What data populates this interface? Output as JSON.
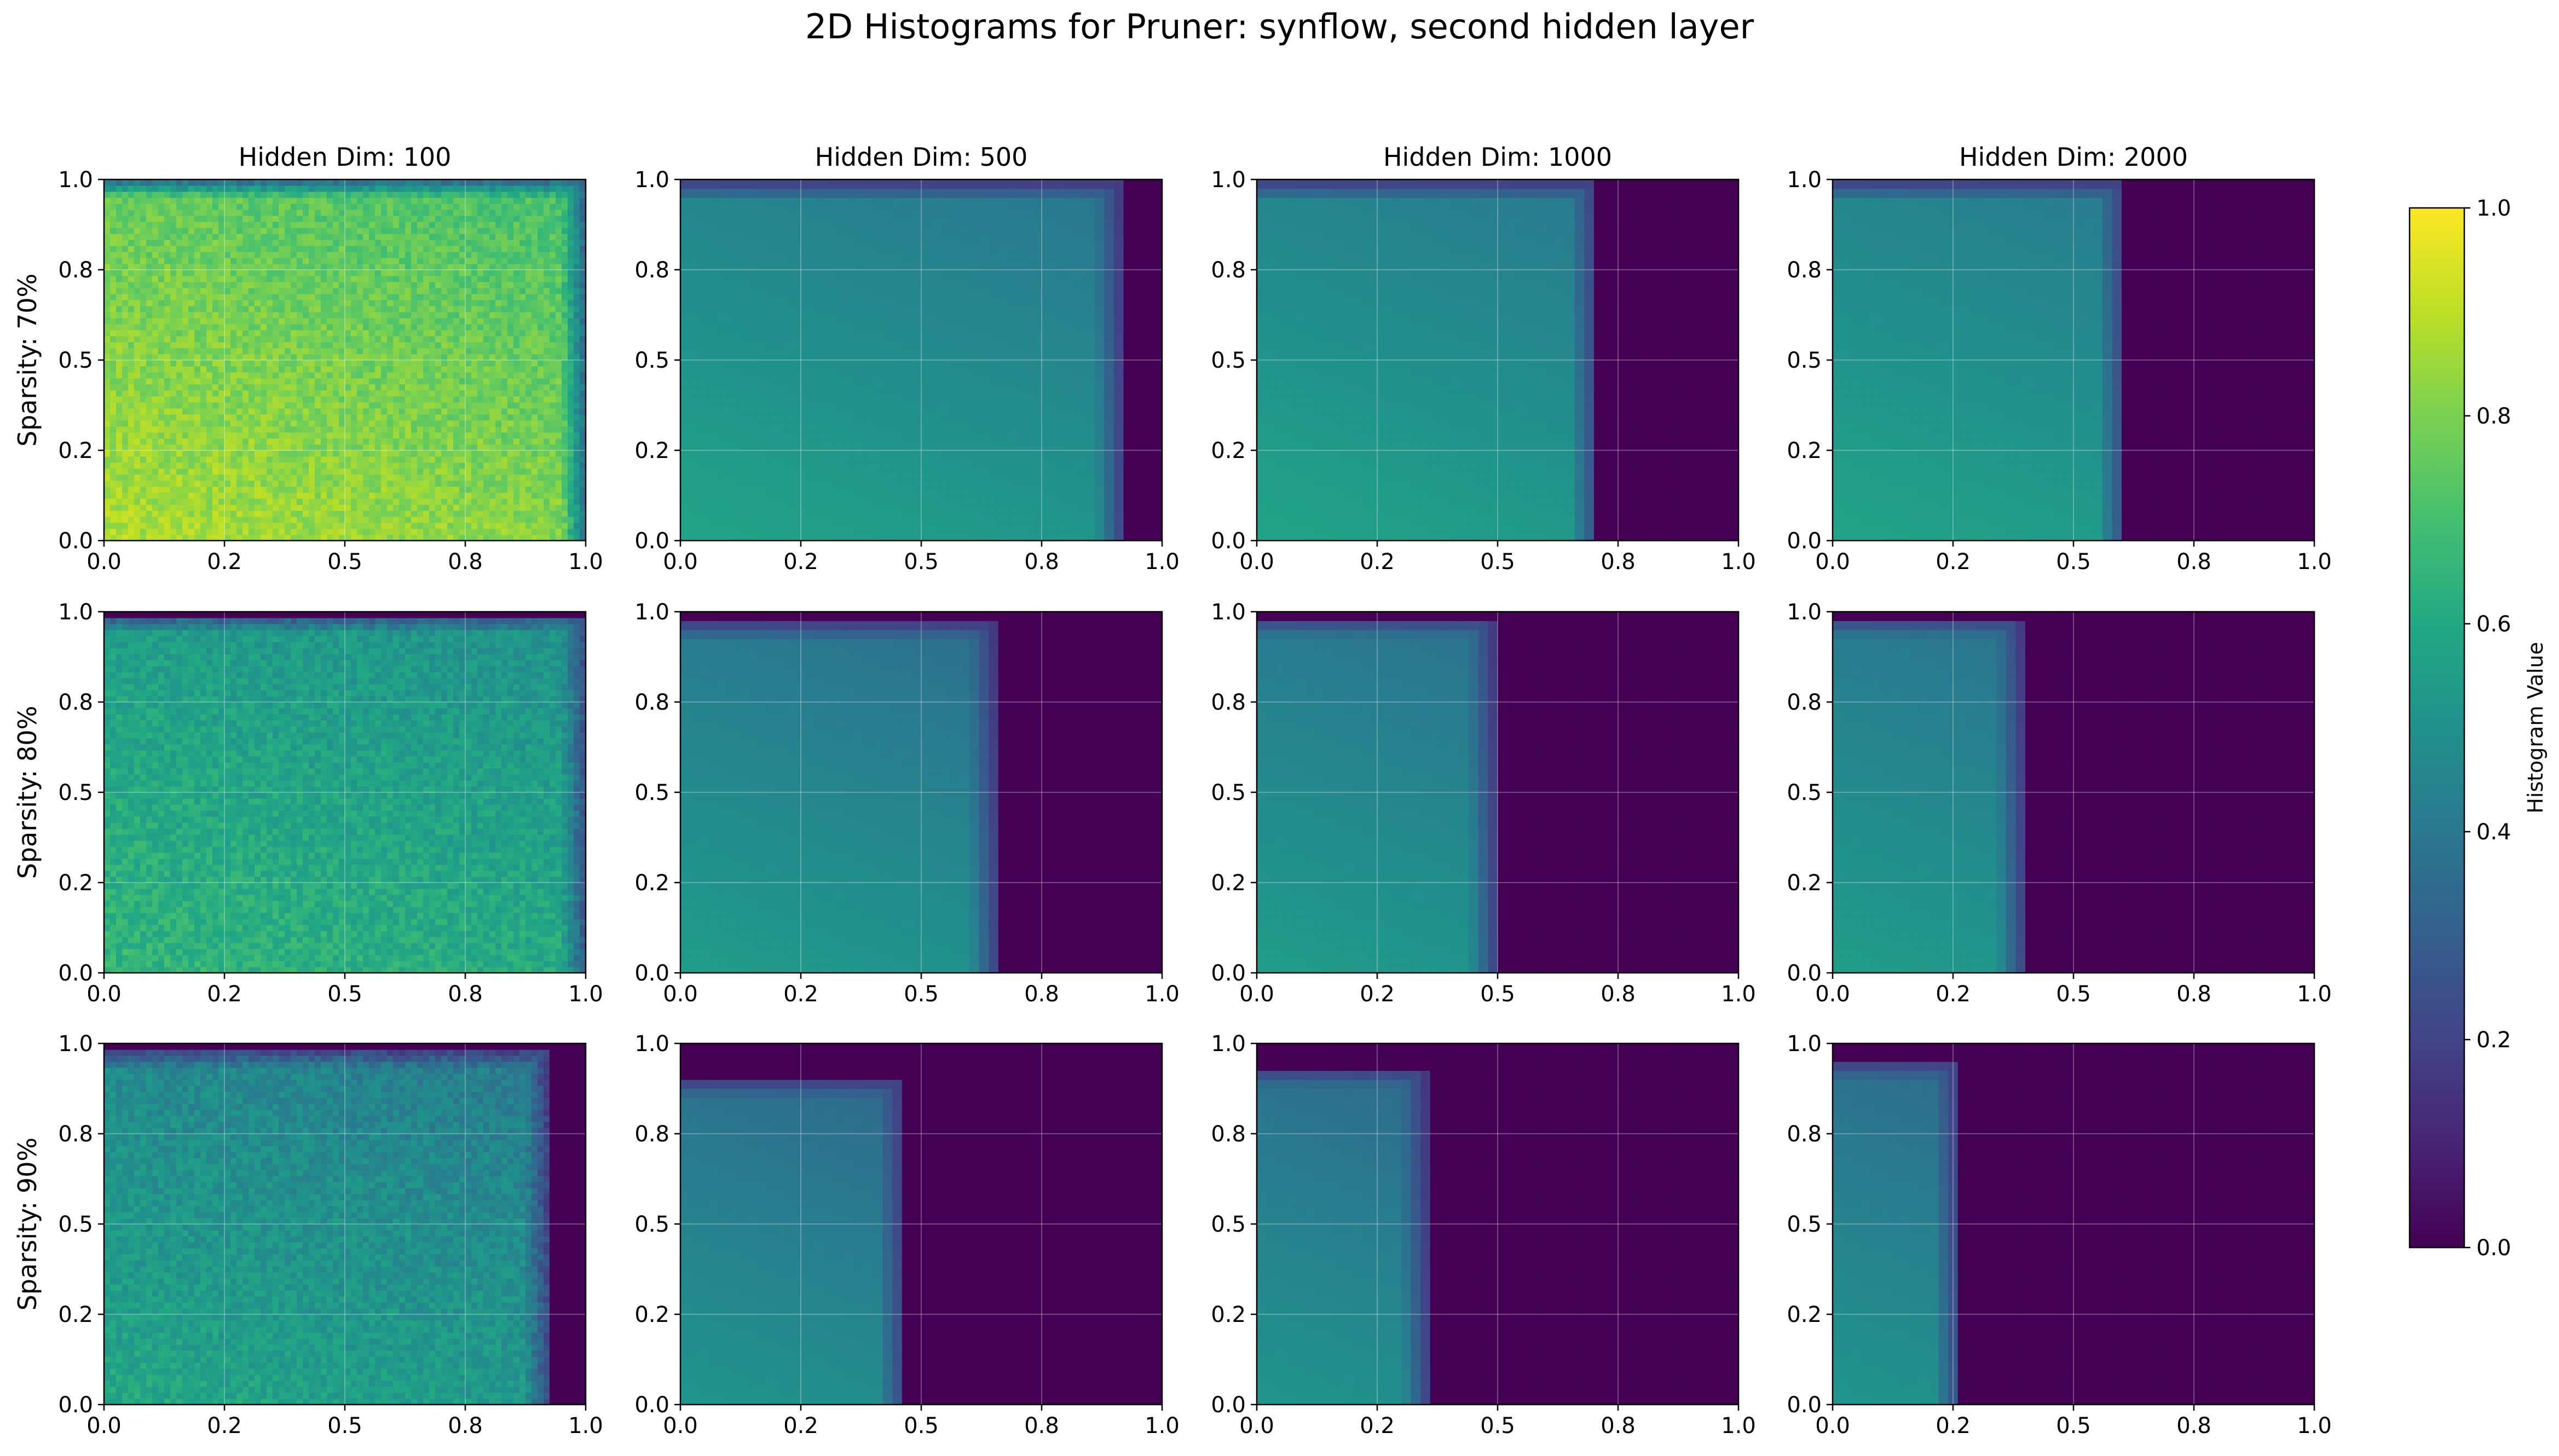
{
  "title": "2D Histograms for Pruner: synflow, second hidden layer",
  "colorbar": {
    "label": "Histogram Value",
    "ticks": [
      "0.0",
      "0.2",
      "0.4",
      "0.6",
      "0.8",
      "1.0"
    ],
    "range": [
      0,
      1
    ],
    "colormap": "viridis"
  },
  "chart_data": {
    "type": "heatmap",
    "grid": [
      3,
      4
    ],
    "col_titles": [
      "Hidden Dim: 100",
      "Hidden Dim: 500",
      "Hidden Dim: 1000",
      "Hidden Dim: 2000"
    ],
    "row_labels": [
      "Sparsity: 70%",
      "Sparsity: 80%",
      "Sparsity: 90%"
    ],
    "x_ticks": [
      "0.0",
      "0.2",
      "0.5",
      "0.8",
      "1.0"
    ],
    "y_ticks": [
      "0.0",
      "0.2",
      "0.5",
      "0.8",
      "1.0"
    ],
    "xlim": [
      0,
      1
    ],
    "ylim": [
      0,
      1
    ],
    "grid_lines": true,
    "panels": [
      {
        "row": 0,
        "col": 0,
        "cutoff_x": 1.0,
        "top_y": 1.0,
        "value_low": 0.88,
        "value_high": 0.7,
        "noise": true
      },
      {
        "row": 0,
        "col": 1,
        "cutoff_x": 0.91,
        "top_y": 0.99,
        "value_low": 0.58,
        "value_high": 0.38,
        "noise": false
      },
      {
        "row": 0,
        "col": 2,
        "cutoff_x": 0.7,
        "top_y": 0.99,
        "value_low": 0.58,
        "value_high": 0.38,
        "noise": false
      },
      {
        "row": 0,
        "col": 3,
        "cutoff_x": 0.6,
        "top_y": 0.99,
        "value_low": 0.58,
        "value_high": 0.38,
        "noise": false
      },
      {
        "row": 1,
        "col": 0,
        "cutoff_x": 1.0,
        "top_y": 0.99,
        "value_low": 0.66,
        "value_high": 0.5,
        "noise": true
      },
      {
        "row": 1,
        "col": 1,
        "cutoff_x": 0.65,
        "top_y": 0.97,
        "value_low": 0.55,
        "value_high": 0.33,
        "noise": false
      },
      {
        "row": 1,
        "col": 2,
        "cutoff_x": 0.49,
        "top_y": 0.98,
        "value_low": 0.55,
        "value_high": 0.33,
        "noise": false
      },
      {
        "row": 1,
        "col": 3,
        "cutoff_x": 0.39,
        "top_y": 0.98,
        "value_low": 0.55,
        "value_high": 0.33,
        "noise": false
      },
      {
        "row": 2,
        "col": 0,
        "cutoff_x": 0.92,
        "top_y": 0.98,
        "value_low": 0.6,
        "value_high": 0.4,
        "noise": true
      },
      {
        "row": 2,
        "col": 1,
        "cutoff_x": 0.46,
        "top_y": 0.9,
        "value_low": 0.52,
        "value_high": 0.28,
        "noise": false
      },
      {
        "row": 2,
        "col": 2,
        "cutoff_x": 0.35,
        "top_y": 0.93,
        "value_low": 0.52,
        "value_high": 0.28,
        "noise": false
      },
      {
        "row": 2,
        "col": 3,
        "cutoff_x": 0.26,
        "top_y": 0.95,
        "value_low": 0.52,
        "value_high": 0.28,
        "noise": false
      }
    ]
  }
}
